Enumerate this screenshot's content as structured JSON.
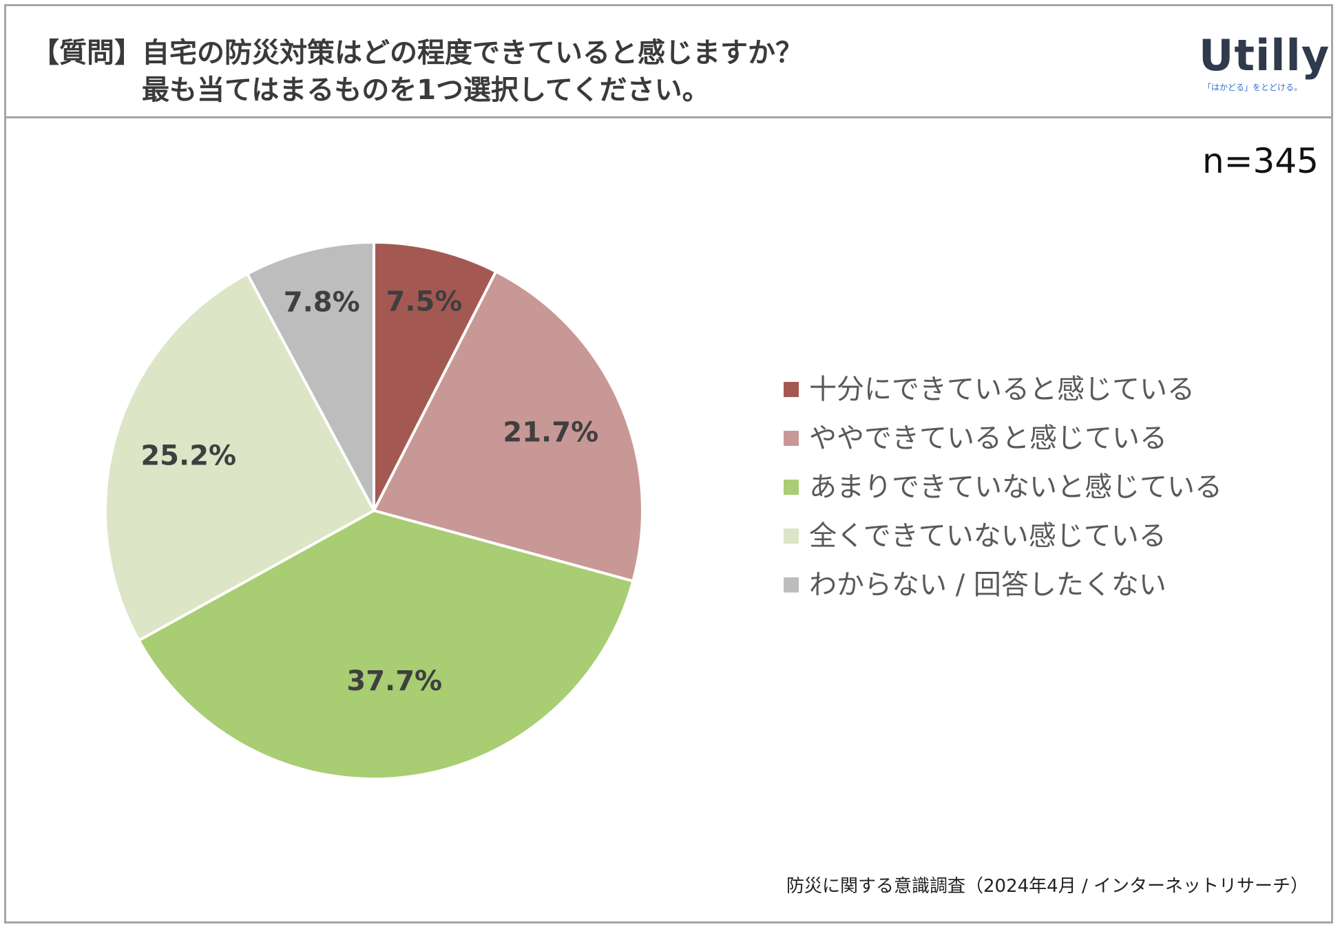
{
  "header": {
    "question_tag": "【質問】",
    "question_line1": "自宅の防災対策はどの程度できていると感じますか？",
    "question_line2": "最も当てはまるものを1つ選択してください。"
  },
  "logo": {
    "wordmark": "Utilly",
    "tagline": "「はかどる」をとどける。"
  },
  "sample_size": "n=345",
  "footer": "防災に関する意識調査（2024年4月 / インターネットリサーチ）",
  "chart_data": {
    "type": "pie",
    "categories": [
      "十分にできていると感じている",
      "ややできていると感じている",
      "あまりできていないと感じている",
      "全くできていない感じている",
      "わからない / 回答したくない"
    ],
    "values": [
      7.5,
      21.7,
      37.7,
      25.2,
      7.8
    ],
    "value_labels": [
      "7.5%",
      "21.7%",
      "37.7%",
      "25.2%",
      "7.8%"
    ],
    "colors": [
      "#a35952",
      "#c89896",
      "#a8cd72",
      "#dce5c6",
      "#bdbdbd"
    ],
    "legend_position": "right"
  }
}
